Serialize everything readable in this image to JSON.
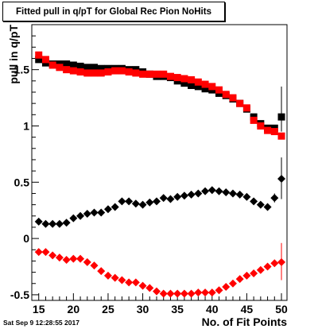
{
  "title": "Fitted pull in q/pT  for Global Rec Pion NoHits",
  "timestamp": "Sat Sep  9 12:28:55 2017",
  "chart_data": {
    "type": "scatter",
    "title": "Fitted pull in q/pT  for Global Rec Pion NoHits",
    "xlabel": "No. of Fit Points",
    "ylabel": "pull in q/pT",
    "xlim": [
      14,
      50.8
    ],
    "ylim": [
      -0.55,
      1.9
    ],
    "xticks": [
      15,
      20,
      25,
      30,
      35,
      40,
      45,
      50
    ],
    "yticks": [
      -0.5,
      0,
      0.5,
      1,
      1.5
    ],
    "ytick_labels": [
      "-0.5",
      "0",
      "0.5",
      "1",
      "1.5"
    ],
    "grid": false,
    "series": [
      {
        "marker": "square",
        "color": "#000000",
        "x": [
          15,
          16,
          17,
          18,
          19,
          20,
          21,
          22,
          23,
          24,
          25,
          26,
          27,
          28,
          29,
          30,
          31,
          32,
          33,
          34,
          35,
          36,
          37,
          38,
          39,
          40,
          41,
          42,
          43,
          44,
          45,
          46,
          47,
          48,
          49,
          50
        ],
        "y": [
          1.59,
          1.56,
          1.55,
          1.55,
          1.55,
          1.54,
          1.53,
          1.52,
          1.52,
          1.51,
          1.51,
          1.51,
          1.51,
          1.5,
          1.5,
          1.48,
          1.46,
          1.44,
          1.44,
          1.43,
          1.4,
          1.38,
          1.36,
          1.35,
          1.33,
          1.32,
          1.29,
          1.27,
          1.24,
          1.2,
          1.15,
          1.08,
          1.02,
          0.98,
          0.98,
          1.08
        ]
      },
      {
        "marker": "square",
        "color": "#ff0000",
        "x": [
          15,
          16,
          17,
          18,
          19,
          20,
          21,
          22,
          23,
          24,
          25,
          26,
          27,
          28,
          29,
          30,
          31,
          32,
          33,
          34,
          35,
          36,
          37,
          38,
          39,
          40,
          41,
          42,
          43,
          44,
          45,
          46,
          47,
          48,
          49,
          50
        ],
        "y": [
          1.63,
          1.59,
          1.54,
          1.52,
          1.5,
          1.49,
          1.48,
          1.47,
          1.47,
          1.47,
          1.48,
          1.49,
          1.49,
          1.48,
          1.47,
          1.46,
          1.46,
          1.46,
          1.46,
          1.44,
          1.43,
          1.42,
          1.41,
          1.39,
          1.37,
          1.35,
          1.32,
          1.28,
          1.25,
          1.2,
          1.16,
          1.05,
          1.0,
          0.96,
          0.95,
          0.91
        ]
      },
      {
        "marker": "diamond",
        "color": "#000000",
        "x": [
          15,
          16,
          17,
          18,
          19,
          20,
          21,
          22,
          23,
          24,
          25,
          26,
          27,
          28,
          29,
          30,
          31,
          32,
          33,
          34,
          35,
          36,
          37,
          38,
          39,
          40,
          41,
          42,
          43,
          44,
          45,
          46,
          47,
          48,
          49,
          50
        ],
        "y": [
          0.15,
          0.13,
          0.13,
          0.13,
          0.14,
          0.18,
          0.2,
          0.22,
          0.23,
          0.23,
          0.26,
          0.28,
          0.33,
          0.33,
          0.31,
          0.3,
          0.32,
          0.33,
          0.36,
          0.35,
          0.37,
          0.38,
          0.39,
          0.4,
          0.42,
          0.43,
          0.42,
          0.41,
          0.4,
          0.39,
          0.37,
          0.33,
          0.3,
          0.28,
          0.36,
          0.53
        ]
      },
      {
        "marker": "diamond",
        "color": "#ff0000",
        "x": [
          15,
          16,
          17,
          18,
          19,
          20,
          21,
          22,
          23,
          24,
          25,
          26,
          27,
          28,
          29,
          30,
          31,
          32,
          33,
          34,
          35,
          36,
          37,
          38,
          39,
          40,
          41,
          42,
          43,
          44,
          45,
          46,
          47,
          48,
          49,
          50
        ],
        "y": [
          -0.12,
          -0.12,
          -0.15,
          -0.17,
          -0.19,
          -0.18,
          -0.18,
          -0.21,
          -0.24,
          -0.29,
          -0.33,
          -0.35,
          -0.37,
          -0.39,
          -0.39,
          -0.42,
          -0.44,
          -0.47,
          -0.49,
          -0.49,
          -0.49,
          -0.49,
          -0.49,
          -0.48,
          -0.48,
          -0.48,
          -0.46,
          -0.43,
          -0.4,
          -0.36,
          -0.33,
          -0.31,
          -0.28,
          -0.25,
          -0.22,
          -0.21
        ]
      }
    ],
    "error_bars": [
      {
        "series": 0,
        "x": 50,
        "low": 0.95,
        "high": 1.35
      },
      {
        "series": 2,
        "x": 50,
        "low": 0.35,
        "high": 0.72
      },
      {
        "series": 2,
        "x": 49,
        "low": 0.32,
        "high": 0.4
      },
      {
        "series": 3,
        "x": 50,
        "low": -0.37,
        "high": -0.04
      }
    ]
  }
}
